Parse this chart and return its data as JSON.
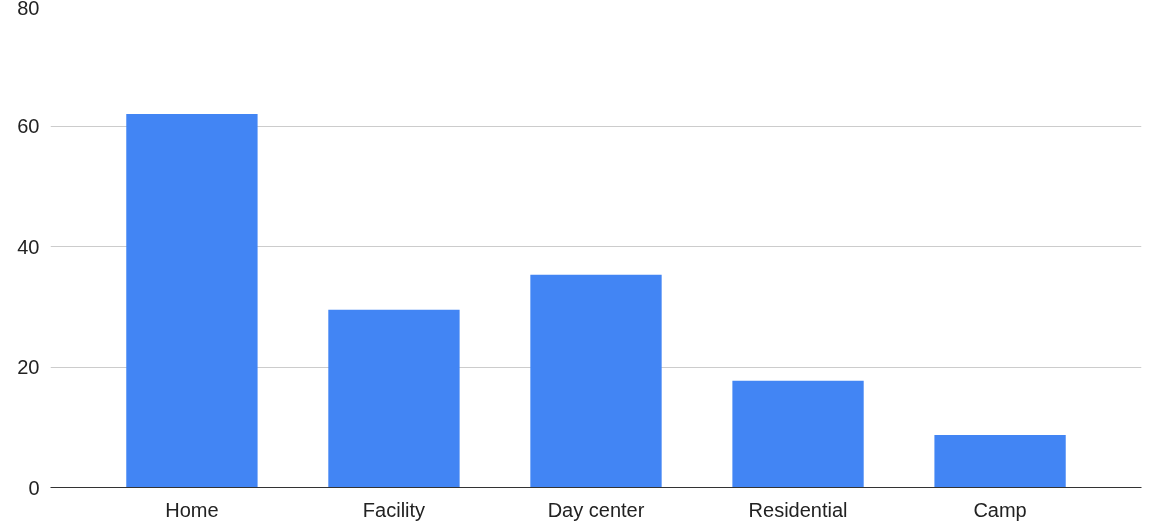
{
  "chart_data": {
    "type": "bar",
    "categories": [
      "Home",
      "Facility",
      "Day center",
      "Residential",
      "Camp"
    ],
    "values": [
      62,
      29.5,
      35.3,
      17.7,
      8.7
    ],
    "color": "#4285f4",
    "ylim": [
      0,
      80
    ],
    "yticks": [
      0,
      20,
      40,
      60,
      80
    ],
    "grid": "y"
  }
}
